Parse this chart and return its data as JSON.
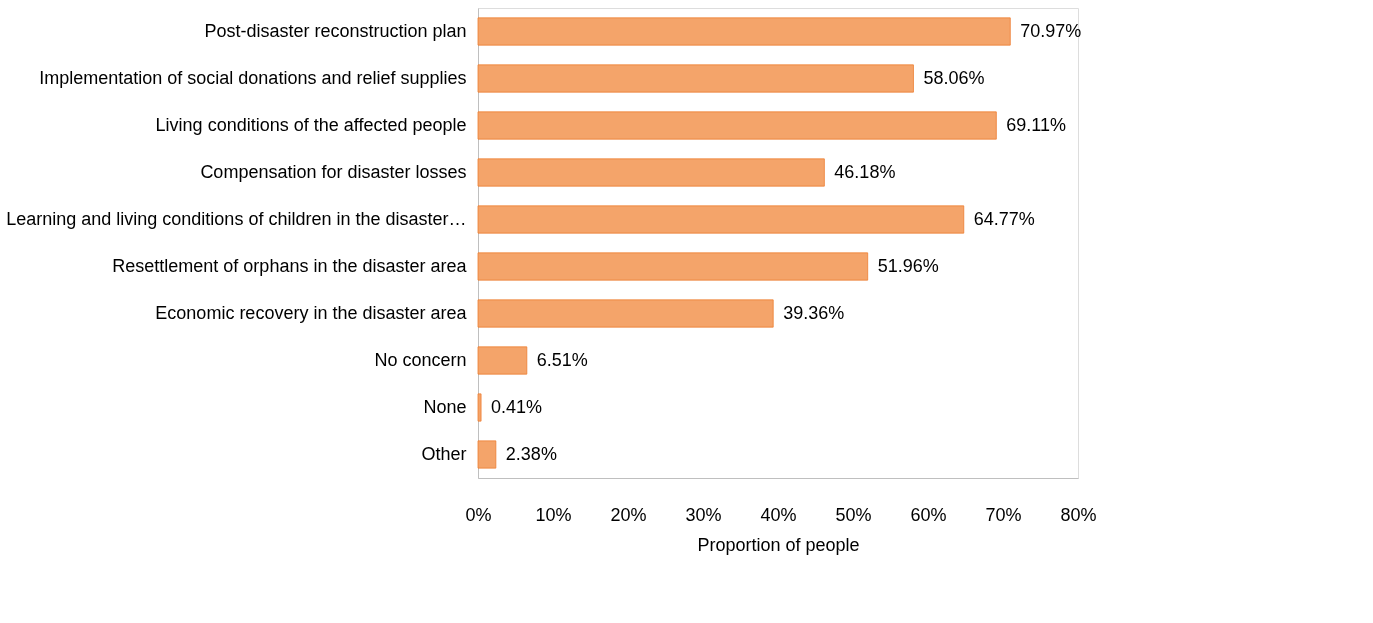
{
  "chart_data": {
    "type": "bar",
    "orientation": "horizontal",
    "xlabel": "Proportion of people",
    "categories": [
      "Post-disaster reconstruction plan",
      "Implementation of social donations and relief supplies",
      "Living conditions of the affected people",
      "Compensation for disaster losses",
      "Learning and living conditions of children in the disaster…",
      "Resettlement of orphans in the disaster area",
      "Economic recovery in the disaster area",
      "No concern",
      "None",
      "Other"
    ],
    "values": [
      70.97,
      58.06,
      69.11,
      46.18,
      64.77,
      51.96,
      39.36,
      6.51,
      0.41,
      2.38
    ],
    "value_labels": [
      "70.97%",
      "58.06%",
      "69.11%",
      "46.18%",
      "64.77%",
      "51.96%",
      "39.36%",
      "6.51%",
      "0.41%",
      "2.38%"
    ],
    "color": "#f4a46a",
    "xlim": [
      0,
      80
    ],
    "xticks": [
      {
        "value": 0,
        "label": "0%"
      },
      {
        "value": 10,
        "label": "10%"
      },
      {
        "value": 20,
        "label": "20%"
      },
      {
        "value": 30,
        "label": "30%"
      },
      {
        "value": 40,
        "label": "40%"
      },
      {
        "value": 50,
        "label": "50%"
      },
      {
        "value": 60,
        "label": "60%"
      },
      {
        "value": 70,
        "label": "70%"
      },
      {
        "value": 80,
        "label": "80%"
      }
    ],
    "grid": false
  }
}
